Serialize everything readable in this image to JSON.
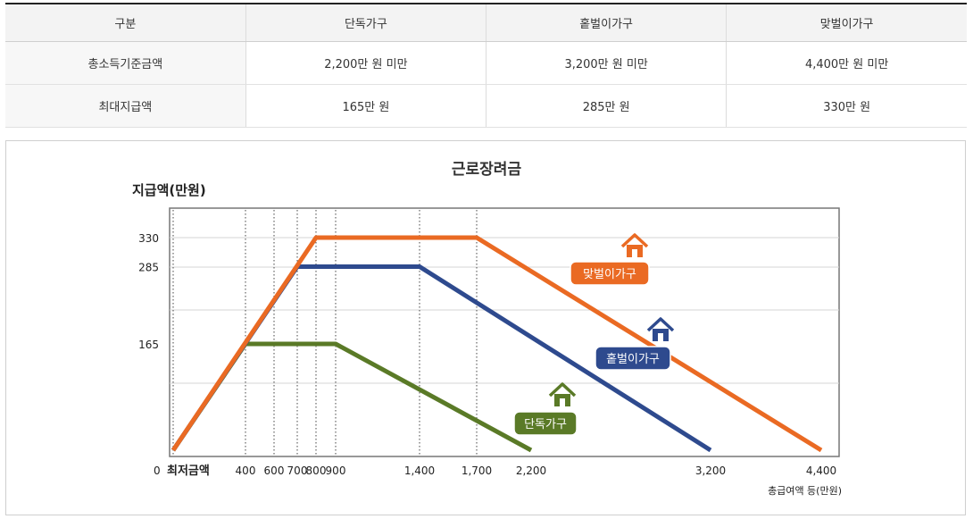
{
  "table": {
    "headers": [
      "구분",
      "단독가구",
      "홑벌이가구",
      "맞벌이가구"
    ],
    "rows": [
      [
        "총소득기준금액",
        "2,200만 원 미만",
        "3,200만 원 미만",
        "4,400만 원 미만"
      ],
      [
        "최대지급액",
        "165만 원",
        "285만 원",
        "330만 원"
      ]
    ]
  },
  "chart_data": {
    "type": "line",
    "title": "근로장려금",
    "ylabel": "지급액(만원)",
    "xlabel": "총급여액 등(만원)",
    "x_origin_label": "0",
    "x_min_label": "최저금액",
    "x_tick_labels": [
      "400",
      "600",
      "700",
      "800",
      "900",
      "1,400",
      "1,700",
      "2,200",
      "3,200",
      "4,400"
    ],
    "x_ticks": [
      400,
      600,
      700,
      800,
      900,
      1400,
      1700,
      2200,
      3200,
      4400
    ],
    "y_ticks": [
      165,
      285,
      330
    ],
    "y_tick_labels": [
      "165",
      "285",
      "330"
    ],
    "xlim": [
      0,
      4600
    ],
    "ylim": [
      0,
      370
    ],
    "grid": true,
    "series": [
      {
        "name": "단독가구",
        "color": "#5a7a27",
        "x": [
          0,
          400,
          900,
          2200
        ],
        "y": [
          0,
          165,
          165,
          0
        ],
        "icon": "house-icon"
      },
      {
        "name": "홑벌이가구",
        "color": "#2e4a8e",
        "x": [
          0,
          700,
          1400,
          3200
        ],
        "y": [
          0,
          285,
          285,
          0
        ],
        "icon": "house-icon"
      },
      {
        "name": "맞벌이가구",
        "color": "#ea6a23",
        "x": [
          0,
          800,
          1700,
          4400
        ],
        "y": [
          0,
          330,
          330,
          0
        ],
        "icon": "house-icon"
      }
    ],
    "dotted_guides_x": [
      0,
      400,
      600,
      700,
      800,
      900,
      1400,
      1700
    ]
  }
}
